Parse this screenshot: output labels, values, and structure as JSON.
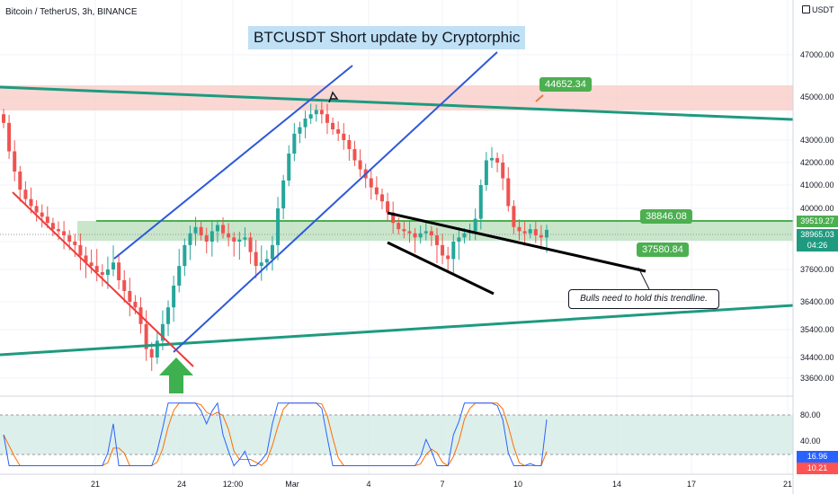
{
  "header": {
    "symbol_line": "Bitcoin / TetherUS, 3h, BINANCE",
    "currency": "USDT"
  },
  "annotations": {
    "headline": "BTCUSDT Short update by Cryptorphic",
    "target_label": "44652.34",
    "support_label": "37580.84",
    "mid_label": "38846.08",
    "note": "Bulls need to hold this trendline.",
    "mid_label_color": "#4caf50",
    "support_label_color": "#4caf50",
    "target_label_color": "#4caf50"
  },
  "chart_data": {
    "type": "candlestick",
    "x_ticks": [
      "21",
      "24",
      "12:00",
      "Mar",
      "4",
      "7",
      "10",
      "14",
      "17",
      "21"
    ],
    "y_ticks": [
      "47000.00",
      "45000.00",
      "43000.00",
      "42000.00",
      "41000.00",
      "40000.00",
      "38400.00",
      "37600.00",
      "36400.00",
      "35400.00",
      "34400.00",
      "33600.00"
    ],
    "price_tags": {
      "resistance": "39519.27",
      "last_price": "38965.03",
      "countdown": "04:26"
    },
    "oscillator": {
      "y_ticks": [
        "80.00",
        "40.00"
      ],
      "tags": [
        "16.96",
        "10.21"
      ],
      "upper_band": 80,
      "lower_band": 20
    },
    "closes": [
      43800,
      42500,
      41600,
      40800,
      40400,
      40100,
      39800,
      39600,
      39300,
      39000,
      38900,
      38700,
      38400,
      38300,
      38000,
      37800,
      37700,
      37500,
      37400,
      37600,
      37800,
      37200,
      36800,
      36400,
      36200,
      35600,
      34700,
      34400,
      35000,
      35600,
      36200,
      37000,
      37700,
      38300,
      38800,
      39100,
      38700,
      38400,
      38900,
      39200,
      38800,
      38600,
      38400,
      38500,
      38600,
      38100,
      37700,
      37800,
      37900,
      38300,
      40000,
      41200,
      42400,
      43300,
      43600,
      44000,
      44200,
      44400,
      44200,
      43800,
      43500,
      43300,
      43000,
      42600,
      42100,
      41700,
      41300,
      40900,
      40600,
      40300,
      39800,
      39300,
      39000,
      38900,
      38800,
      38600,
      38800,
      38900,
      38700,
      38300,
      38000,
      37900,
      38400,
      38600,
      38800,
      38900,
      39500,
      41000,
      42100,
      42200,
      42000,
      41300,
      40100,
      39100,
      38900,
      38800,
      39000,
      38700,
      38600,
      38965
    ],
    "colors": {
      "up": "#26a69a",
      "down": "#ef5350",
      "k_line": "#2962ff",
      "d_line": "#ff6d00"
    }
  }
}
